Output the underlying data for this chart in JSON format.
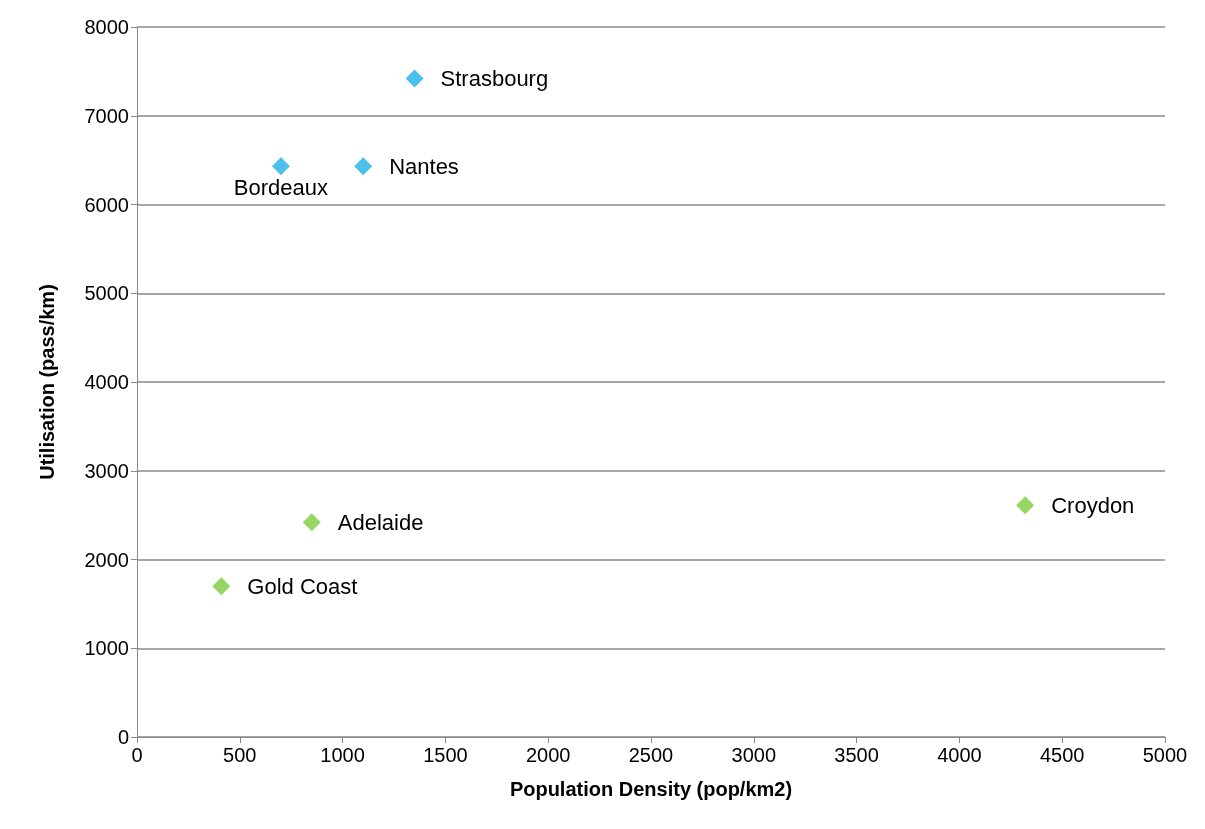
{
  "chart_data": {
    "type": "scatter",
    "xlabel": "Population Density (pop/km2)",
    "ylabel": "Utilisation (pass/km)",
    "series": [
      {
        "color": "#1fb0e6",
        "x": [
          1350,
          700,
          1100
        ],
        "values": [
          7420,
          6430,
          6430
        ]
      },
      {
        "color": "#7dcb3f",
        "x": [
          850,
          410,
          4320
        ],
        "values": [
          2420,
          1700,
          2610
        ]
      }
    ],
    "annotations": [
      {
        "text": "Strasbourg",
        "x": 1350,
        "y": 7420
      },
      {
        "text": "Bordeaux",
        "x": 700,
        "y": 6430
      },
      {
        "text": "Nantes",
        "x": 1100,
        "y": 6430
      },
      {
        "text": "Adelaide",
        "x": 850,
        "y": 2420
      },
      {
        "text": "Gold Coast",
        "x": 410,
        "y": 1700
      },
      {
        "text": "Croydon",
        "x": 4320,
        "y": 2610
      }
    ],
    "xlim": [
      0,
      5000
    ],
    "xticks": [
      0,
      500,
      1000,
      1500,
      2000,
      2500,
      3000,
      3500,
      4000,
      4500,
      5000
    ],
    "ylim": [
      0,
      8000
    ],
    "yticks": [
      0,
      1000,
      2000,
      3000,
      4000,
      5000,
      6000,
      7000,
      8000
    ],
    "grid": "y",
    "marker": "diamond"
  }
}
